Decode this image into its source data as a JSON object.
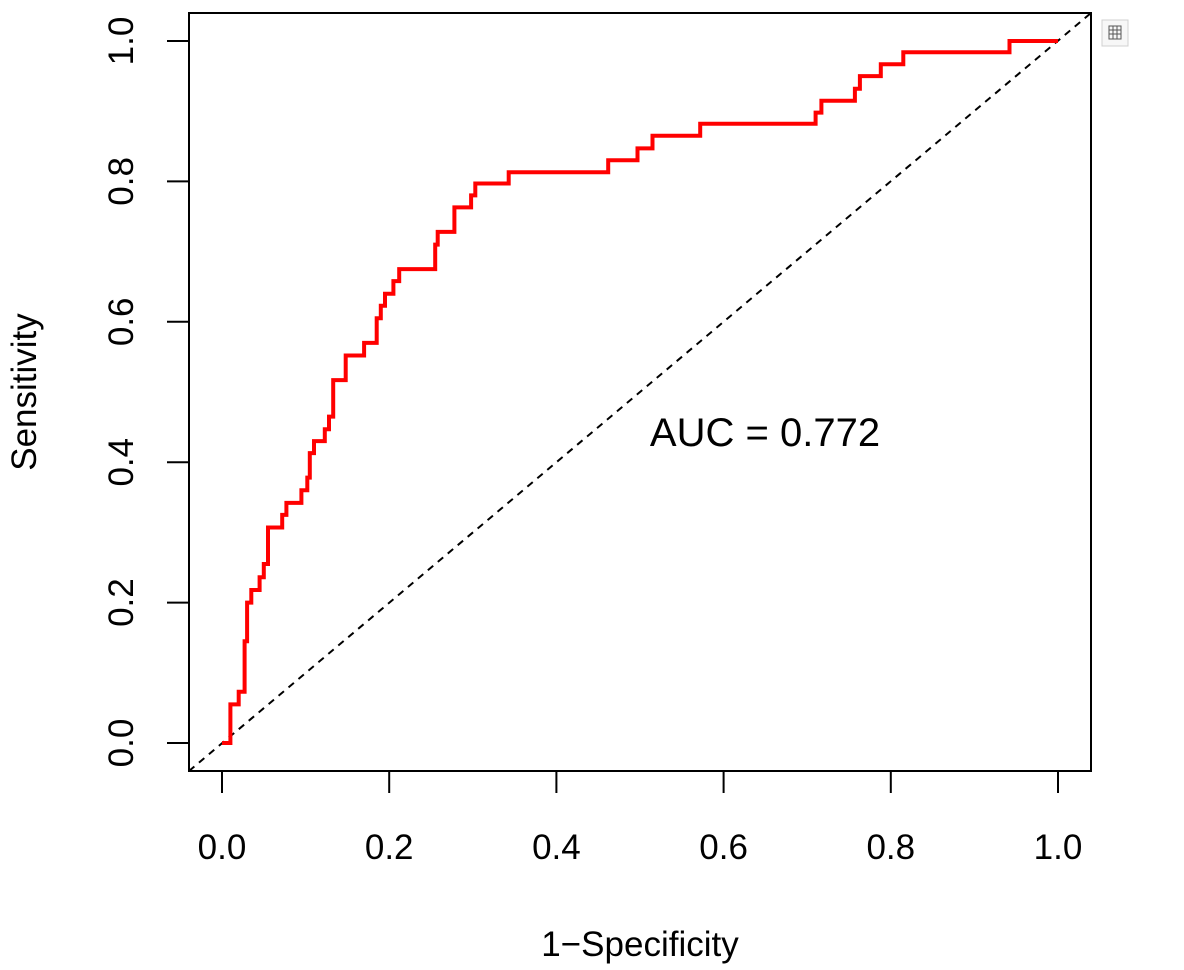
{
  "chart_data": {
    "type": "line",
    "xlabel": "1−Specificity",
    "ylabel": "Sensitivity",
    "xlim": [
      0,
      1
    ],
    "ylim": [
      0,
      1
    ],
    "x_ticks": [
      "0.0",
      "0.2",
      "0.4",
      "0.6",
      "0.8",
      "1.0"
    ],
    "y_ticks": [
      "0.0",
      "0.2",
      "0.4",
      "0.6",
      "0.8",
      "1.0"
    ],
    "annotation": "AUC = 0.772",
    "grid": false,
    "colors": {
      "roc_curve": "#ff0000",
      "reference_line": "#000000"
    },
    "series": [
      {
        "points": [
          [
            0.0,
            0.0
          ],
          [
            0.01,
            0.0
          ],
          [
            0.01,
            0.055
          ],
          [
            0.02,
            0.055
          ],
          [
            0.02,
            0.073
          ],
          [
            0.027,
            0.073
          ],
          [
            0.027,
            0.145
          ],
          [
            0.03,
            0.145
          ],
          [
            0.03,
            0.2
          ],
          [
            0.035,
            0.2
          ],
          [
            0.035,
            0.218
          ],
          [
            0.045,
            0.218
          ],
          [
            0.045,
            0.236
          ],
          [
            0.05,
            0.236
          ],
          [
            0.05,
            0.255
          ],
          [
            0.055,
            0.255
          ],
          [
            0.055,
            0.307
          ],
          [
            0.072,
            0.307
          ],
          [
            0.072,
            0.325
          ],
          [
            0.077,
            0.325
          ],
          [
            0.077,
            0.342
          ],
          [
            0.095,
            0.342
          ],
          [
            0.095,
            0.36
          ],
          [
            0.102,
            0.36
          ],
          [
            0.102,
            0.378
          ],
          [
            0.105,
            0.378
          ],
          [
            0.105,
            0.413
          ],
          [
            0.11,
            0.413
          ],
          [
            0.11,
            0.43
          ],
          [
            0.123,
            0.43
          ],
          [
            0.123,
            0.447
          ],
          [
            0.128,
            0.447
          ],
          [
            0.128,
            0.465
          ],
          [
            0.133,
            0.465
          ],
          [
            0.133,
            0.517
          ],
          [
            0.148,
            0.517
          ],
          [
            0.148,
            0.552
          ],
          [
            0.17,
            0.552
          ],
          [
            0.17,
            0.57
          ],
          [
            0.185,
            0.57
          ],
          [
            0.185,
            0.605
          ],
          [
            0.19,
            0.605
          ],
          [
            0.19,
            0.623
          ],
          [
            0.195,
            0.623
          ],
          [
            0.195,
            0.64
          ],
          [
            0.205,
            0.64
          ],
          [
            0.205,
            0.658
          ],
          [
            0.212,
            0.658
          ],
          [
            0.212,
            0.675
          ],
          [
            0.255,
            0.675
          ],
          [
            0.255,
            0.71
          ],
          [
            0.258,
            0.71
          ],
          [
            0.258,
            0.728
          ],
          [
            0.278,
            0.728
          ],
          [
            0.278,
            0.763
          ],
          [
            0.298,
            0.763
          ],
          [
            0.298,
            0.78
          ],
          [
            0.303,
            0.78
          ],
          [
            0.303,
            0.797
          ],
          [
            0.343,
            0.797
          ],
          [
            0.343,
            0.813
          ],
          [
            0.462,
            0.813
          ],
          [
            0.462,
            0.83
          ],
          [
            0.497,
            0.83
          ],
          [
            0.497,
            0.847
          ],
          [
            0.515,
            0.847
          ],
          [
            0.515,
            0.865
          ],
          [
            0.572,
            0.865
          ],
          [
            0.572,
            0.882
          ],
          [
            0.71,
            0.882
          ],
          [
            0.71,
            0.898
          ],
          [
            0.717,
            0.898
          ],
          [
            0.717,
            0.915
          ],
          [
            0.757,
            0.915
          ],
          [
            0.757,
            0.932
          ],
          [
            0.763,
            0.932
          ],
          [
            0.763,
            0.95
          ],
          [
            0.788,
            0.95
          ],
          [
            0.788,
            0.967
          ],
          [
            0.815,
            0.967
          ],
          [
            0.815,
            0.984
          ],
          [
            0.942,
            0.984
          ],
          [
            0.942,
            1.0
          ],
          [
            1.0,
            1.0
          ]
        ]
      }
    ]
  },
  "toolbar": {
    "export_icon": "table-export-icon"
  }
}
